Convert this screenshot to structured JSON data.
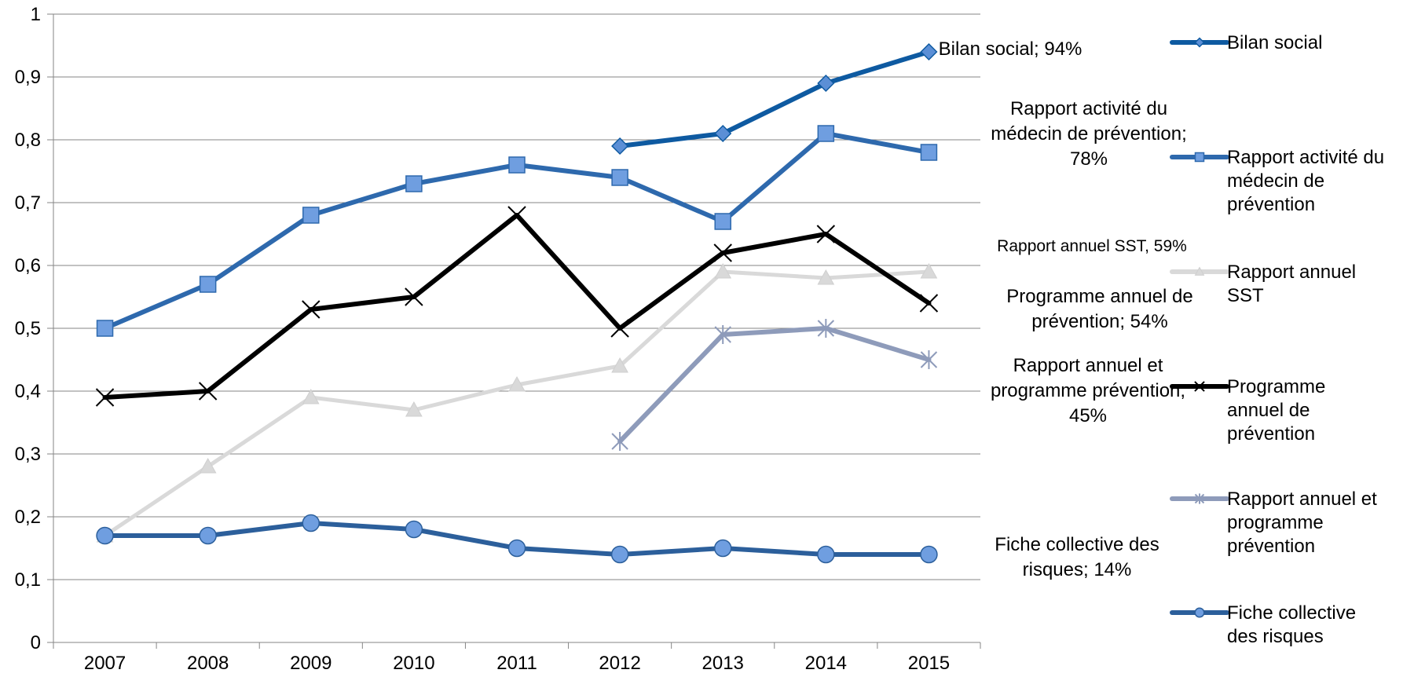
{
  "chart_data": {
    "type": "line",
    "title": "",
    "xlabel": "",
    "ylabel": "",
    "categories": [
      "2007",
      "2008",
      "2009",
      "2010",
      "2011",
      "2012",
      "2013",
      "2014",
      "2015"
    ],
    "ylim": [
      0,
      1
    ],
    "y_ticks": [
      "0",
      "0,1",
      "0,2",
      "0,3",
      "0,4",
      "0,5",
      "0,6",
      "0,7",
      "0,8",
      "0,9",
      "1"
    ],
    "grid": true,
    "legend_position": "right",
    "series": [
      {
        "name": "Bilan social",
        "legend_lines": [
          "Bilan social"
        ],
        "color": "#0e5aa1",
        "marker": "diamond",
        "values": [
          null,
          null,
          null,
          null,
          null,
          0.79,
          0.81,
          0.89,
          0.94
        ],
        "end_label_lines": [
          "Bilan social; 94%"
        ]
      },
      {
        "name": "Rapport activité du médecin de prévention",
        "legend_lines": [
          "Rapport activité du",
          "médecin de",
          "prévention"
        ],
        "color": "#2e69ad",
        "marker": "square",
        "values": [
          0.5,
          0.57,
          0.68,
          0.73,
          0.76,
          0.74,
          0.67,
          0.81,
          0.78
        ],
        "end_label_lines": [
          "Rapport activité du",
          "médecin de prévention;",
          "78%"
        ]
      },
      {
        "name": "Rapport annuel SST",
        "legend_lines": [
          "Rapport annuel",
          "SST"
        ],
        "color": "#d9d9d9",
        "marker": "triangle",
        "values": [
          0.17,
          0.28,
          0.39,
          0.37,
          0.41,
          0.44,
          0.59,
          0.58,
          0.59
        ],
        "end_label_lines": [
          "Rapport annuel SST, 59%"
        ]
      },
      {
        "name": "Programme annuel de prévention",
        "legend_lines": [
          "Programme",
          "annuel de",
          "prévention"
        ],
        "color": "#000000",
        "marker": "x",
        "values": [
          0.39,
          0.4,
          0.53,
          0.55,
          0.68,
          0.5,
          0.62,
          0.65,
          0.54
        ],
        "end_label_lines": [
          "Programme annuel de",
          "prévention; 54%"
        ]
      },
      {
        "name": "Rapport annuel et programme prévention",
        "legend_lines": [
          "Rapport annuel et",
          "programme",
          "prévention"
        ],
        "color": "#8e9bba",
        "marker": "star",
        "values": [
          null,
          null,
          null,
          null,
          null,
          0.32,
          0.49,
          0.5,
          0.45
        ],
        "end_label_lines": [
          "Rapport annuel et",
          "programme prévention;",
          "45%"
        ]
      },
      {
        "name": "Fiche collective des risques",
        "legend_lines": [
          "Fiche collective",
          "des risques"
        ],
        "color": "#2c5f9b",
        "marker": "circle",
        "values": [
          0.17,
          0.17,
          0.19,
          0.18,
          0.15,
          0.14,
          0.15,
          0.14,
          0.14
        ],
        "end_label_lines": [
          "Fiche collective des",
          "risques; 14%"
        ]
      }
    ]
  }
}
